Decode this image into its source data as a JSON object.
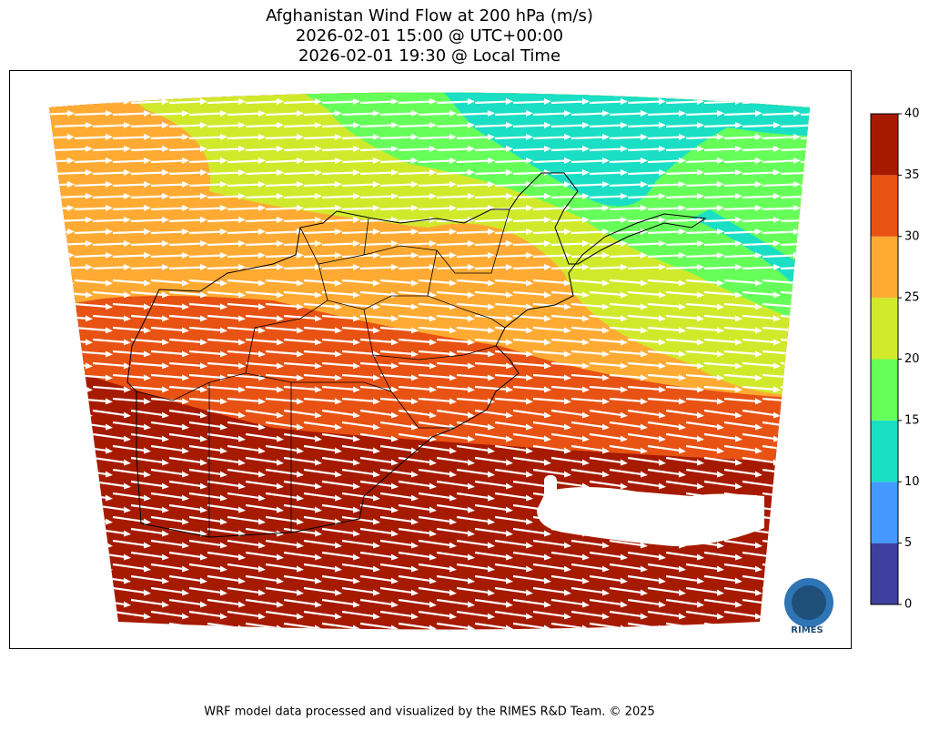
{
  "title": [
    "Afghanistan Wind Flow at 200 hPa (m/s)",
    "2026-02-01 15:00 @ UTC+00:00",
    "2026-02-01 19:30 @ Local Time"
  ],
  "colorbar": {
    "ticks": [
      0,
      5,
      10,
      15,
      20,
      25,
      30,
      35,
      40
    ],
    "colors": [
      "#3f3fa0",
      "#4499ff",
      "#1adfc5",
      "#66ff5a",
      "#d0ea2b",
      "#ffab33",
      "#e85213",
      "#a61a00"
    ]
  },
  "footer": "WRF model data processed and visualized by the RIMES R&D Team. © 2025",
  "logo": "RIMES"
}
